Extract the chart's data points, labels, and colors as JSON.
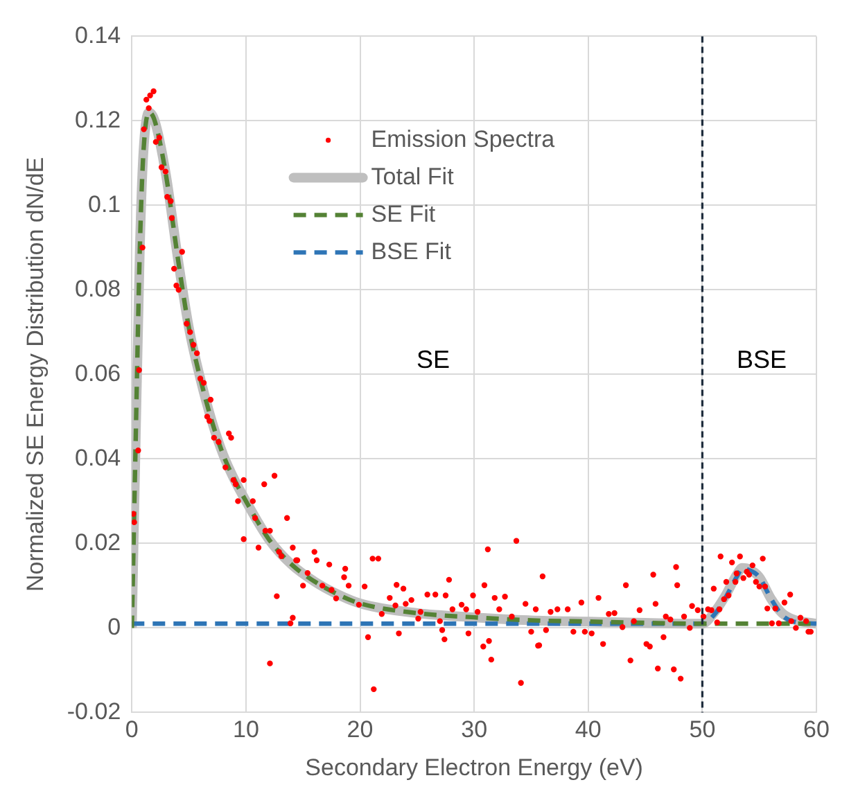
{
  "chart_data": {
    "type": "scatter",
    "xlabel": "Secondary Electron Energy (eV)",
    "ylabel": "Normalized SE Energy Distribution dN/dE",
    "xlim": [
      0,
      60
    ],
    "xticks": [
      0,
      10,
      20,
      30,
      40,
      50,
      60
    ],
    "ylim": [
      -0.02,
      0.14
    ],
    "yticks": [
      -0.02,
      0,
      0.02,
      0.04,
      0.06,
      0.08,
      0.1,
      0.12,
      0.14
    ],
    "grid": true,
    "legend": "top",
    "ref_lines": [
      {
        "axis": "x",
        "value": 50,
        "color": "#1f2d3d",
        "line_style": "dashed"
      }
    ],
    "annotations": [
      "SE",
      "BSE"
    ],
    "series": [
      {
        "name": "Emission Spectra",
        "marker": "circle",
        "color": "#ff0000",
        "x": [
          0.13,
          0.2,
          0.55,
          0.63,
          0.93,
          1.05,
          1.27,
          1.48,
          1.6,
          1.9,
          2.1,
          2.4,
          2.6,
          2.95,
          3.1,
          3.4,
          3.5,
          3.7,
          3.9,
          4.1,
          4.4,
          4.8,
          5.1,
          5.4,
          5.7,
          6.0,
          6.3,
          6.6,
          6.8,
          6.9,
          7.2,
          7.6,
          8.5,
          8.7,
          8.2,
          8.9,
          9.1,
          9.3,
          9.8,
          9.8,
          10.6,
          10.8,
          11.1,
          11.6,
          11.7,
          12.1,
          12.5,
          12.9,
          13.6,
          14.1,
          14.5,
          15.0,
          15.4,
          16.0,
          16.2,
          16.7,
          17.3,
          17.9,
          18.7,
          19.0,
          12.7,
          12.1,
          13.1,
          13.9,
          14.1,
          14.4,
          17.5,
          18.6,
          19.9,
          20.4,
          20.7,
          21.1,
          21.2,
          21.6,
          21.9,
          22.6,
          23.1,
          23.2,
          23.8,
          23.4,
          24.0,
          24.5,
          25.1,
          25.3,
          25.9,
          26.6,
          27.0,
          27.2,
          27.5,
          27.8,
          27.4,
          28.1,
          28.9,
          29.3,
          29.5,
          29.9,
          30.3,
          30.9,
          31.2,
          30.8,
          31.3,
          31.5,
          31.8,
          32.2,
          32.7,
          33.3,
          33.7,
          34.1,
          34.5,
          35.0,
          35.4,
          35.7,
          36.0,
          35.6,
          36.3,
          36.7,
          37.3,
          38.2,
          38.7,
          39.4,
          39.7,
          40.3,
          40.9,
          41.3,
          41.8,
          42.3,
          43.0,
          43.3,
          43.7,
          44.0,
          44.5,
          45.1,
          45.4,
          45.7,
          45.9,
          46.1,
          46.6,
          46.8,
          47.2,
          47.5,
          47.7,
          47.8,
          48.1,
          48.4,
          48.9,
          49.1,
          49.6,
          50.1,
          50.5,
          50.8,
          51.0,
          51.3,
          51.5,
          51.6,
          51.9,
          52.1,
          52.3,
          52.6,
          52.9,
          53.0,
          53.3,
          53.6,
          53.9,
          54.1,
          54.4,
          54.7,
          55.0,
          55.3,
          55.5,
          55.7,
          56.1,
          56.4,
          56.7,
          57.2,
          57.7,
          57.8,
          58.2,
          58.6,
          59.1,
          59.3,
          59.5
        ],
        "values": [
          0.027,
          0.025,
          0.042,
          0.061,
          0.09,
          0.118,
          0.125,
          0.123,
          0.126,
          0.127,
          0.115,
          0.116,
          0.109,
          0.108,
          0.102,
          0.101,
          0.097,
          0.085,
          0.081,
          0.08,
          0.089,
          0.072,
          0.07,
          0.067,
          0.065,
          0.059,
          0.058,
          0.05,
          0.049,
          0.054,
          0.045,
          0.044,
          0.046,
          0.045,
          0.038,
          0.035,
          0.034,
          0.03,
          0.035,
          0.021,
          0.03,
          0.026,
          0.019,
          0.034,
          0.023,
          0.023,
          0.036,
          0.018,
          0.026,
          0.019,
          0.016,
          0.01,
          0.013,
          0.018,
          0.016,
          0.01,
          0.015,
          0.007,
          0.014,
          0.01,
          0.0075,
          -0.0084,
          0.017,
          0.0011,
          0.0024,
          0.016,
          0.009,
          0.012,
          0.0055,
          0.0098,
          -0.0022,
          0.0164,
          -0.0145,
          0.0164,
          0.0033,
          0.0071,
          0.0053,
          0.0102,
          0.0093,
          -0.0013,
          0.0057,
          0.0066,
          0.0022,
          0.0038,
          0.0079,
          0.0079,
          0.0016,
          -0.0005,
          0.0077,
          0.0114,
          -0.0027,
          0.0044,
          0.0055,
          0.0044,
          -0.0013,
          0.0077,
          0.0038,
          0.0101,
          0.0186,
          -0.0044,
          -0.0031,
          -0.0075,
          0.0071,
          0.0044,
          0.0074,
          0.0027,
          0.0206,
          -0.013,
          0.0057,
          -0.0009,
          0.0044,
          -0.0041,
          0.0122,
          -0.0042,
          -0.0005,
          0.0038,
          0.0044,
          0.0044,
          -0.0009,
          0.006,
          -0.0009,
          -0.0013,
          0.0071,
          -0.0038,
          0.0033,
          0.0035,
          0.0002,
          0.0101,
          -0.0077,
          0.0016,
          0.0042,
          -0.0038,
          -0.0044,
          0.0126,
          0.0057,
          -0.0096,
          -0.0022,
          0.0027,
          0.002,
          -0.0098,
          0.0144,
          0.0101,
          -0.012,
          0.0027,
          0.0,
          0.0052,
          0.0042,
          0.0027,
          0.0044,
          0.0042,
          0.0093,
          0.0013,
          0.0044,
          0.0169,
          0.0068,
          0.0109,
          0.0077,
          0.0155,
          0.0109,
          0.0129,
          0.0169,
          0.0118,
          0.0133,
          0.0126,
          0.0148,
          0.0109,
          0.0098,
          0.0164,
          0.0098,
          0.0046,
          0.0011,
          0.0046,
          0.0011,
          0.006,
          0.0079,
          0.0016,
          0.0,
          0.0024,
          0.0016,
          -0.0009,
          -0.0009
        ]
      },
      {
        "name": "Total Fit",
        "type": "line",
        "marker": "none",
        "line_style": "solid",
        "color": "#bfbfbf",
        "x": [
          0,
          0.3,
          0.7,
          1,
          1.5,
          2,
          3,
          4,
          5,
          6,
          7,
          8,
          9,
          10,
          12,
          14,
          16,
          18,
          20,
          25,
          30,
          35,
          40,
          45,
          50,
          51,
          52,
          53,
          53.5,
          54,
          55,
          56,
          57,
          58,
          60
        ],
        "values": [
          0,
          0.04,
          0.09,
          0.112,
          0.122,
          0.12,
          0.107,
          0.088,
          0.071,
          0.059,
          0.049,
          0.041,
          0.035,
          0.03,
          0.021,
          0.015,
          0.011,
          0.008,
          0.0058,
          0.0035,
          0.0025,
          0.0018,
          0.0015,
          0.0012,
          0.001,
          0.0035,
          0.0075,
          0.0125,
          0.0142,
          0.014,
          0.012,
          0.007,
          0.0035,
          0.002,
          0.001
        ]
      },
      {
        "name": "SE Fit",
        "type": "line",
        "marker": "none",
        "line_style": "dashed",
        "color": "#548235",
        "x": [
          0,
          0.3,
          0.7,
          1,
          1.5,
          2,
          3,
          4,
          5,
          6,
          7,
          8,
          9,
          10,
          12,
          14,
          16,
          18,
          20,
          25,
          30,
          35,
          40,
          45,
          50,
          55,
          60
        ],
        "values": [
          0,
          0.04,
          0.09,
          0.112,
          0.122,
          0.12,
          0.107,
          0.088,
          0.071,
          0.059,
          0.049,
          0.041,
          0.035,
          0.03,
          0.021,
          0.015,
          0.011,
          0.008,
          0.0058,
          0.0035,
          0.0025,
          0.0018,
          0.0015,
          0.0012,
          0.001,
          0.001,
          0.001
        ]
      },
      {
        "name": "BSE Fit",
        "type": "line",
        "marker": "none",
        "line_style": "dashed",
        "color": "#2e75b6",
        "x": [
          0,
          50,
          51,
          52,
          53,
          53.5,
          54,
          55,
          56,
          57,
          58,
          60
        ],
        "values": [
          0.001,
          0.001,
          0.003,
          0.007,
          0.012,
          0.014,
          0.0138,
          0.012,
          0.007,
          0.003,
          0.0015,
          0.001
        ]
      }
    ]
  }
}
